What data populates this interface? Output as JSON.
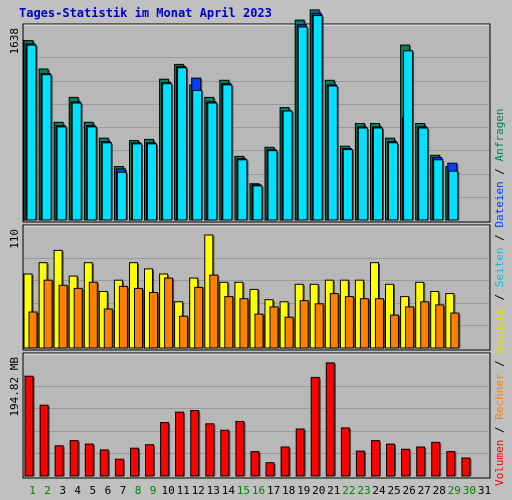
{
  "title": "Tages-Statistik im Monat April 2023",
  "colors": {
    "background": "#c0c0c0",
    "panel": "#b8b8b8",
    "title": "#0000cc",
    "grid": "#9a9a9a",
    "anfragen": "#00805c",
    "dateien": "#0040ff",
    "seiten": "#00e0ff",
    "besuche": "#ffff00",
    "rechner": "#ff8000",
    "volumen": "#ff0000",
    "weekday": "#000000",
    "weekend": "#008000"
  },
  "legend_right": [
    {
      "text": "Volumen",
      "color": "#ff0000"
    },
    {
      "text": " / ",
      "color": "#000000"
    },
    {
      "text": "Rechner",
      "color": "#ff8000"
    },
    {
      "text": " / ",
      "color": "#000000"
    },
    {
      "text": "Besuche",
      "color": "#e0e000"
    },
    {
      "text": " / ",
      "color": "#000000"
    },
    {
      "text": "Seiten",
      "color": "#00c0e0"
    },
    {
      "text": " / ",
      "color": "#000000"
    },
    {
      "text": "Dateien",
      "color": "#0040ff"
    },
    {
      "text": " / ",
      "color": "#000000"
    },
    {
      "text": "Anfragen",
      "color": "#00805c"
    }
  ],
  "chart_data": {
    "type": "bar",
    "x": [
      1,
      2,
      3,
      4,
      5,
      6,
      7,
      8,
      9,
      10,
      11,
      12,
      13,
      14,
      15,
      16,
      17,
      18,
      19,
      20,
      21,
      22,
      23,
      24,
      25,
      26,
      27,
      28,
      29,
      30,
      31
    ],
    "weekend_days": [
      1,
      2,
      8,
      9,
      15,
      16,
      22,
      23,
      29,
      30
    ],
    "panels": [
      {
        "ylabel": "1638",
        "ymax": 1638,
        "series": [
          {
            "name": "Anfragen",
            "values": [
              1580,
              1330,
              860,
              1080,
              860,
              720,
              470,
              700,
              710,
              1240,
              1370,
              1190,
              1080,
              1230,
              560,
              320,
              640,
              990,
              1760,
              1850,
              1230,
              650,
              850,
              850,
              720,
              1540,
              850,
              570,
              470,
              0,
              0
            ]
          },
          {
            "name": "Dateien",
            "values": [
              1550,
              1290,
              830,
              1040,
              830,
              690,
              450,
              680,
              680,
              1210,
              1350,
              1250,
              1040,
              1200,
              540,
              310,
              620,
              960,
              1720,
              1820,
              1190,
              630,
              820,
              820,
              690,
              900,
              820,
              550,
              500,
              0,
              0
            ]
          },
          {
            "name": "Seiten",
            "values": [
              1540,
              1280,
              820,
              1030,
              820,
              680,
              420,
              670,
              670,
              1200,
              1340,
              1140,
              1030,
              1190,
              530,
              300,
              610,
              960,
              1700,
              1800,
              1180,
              620,
              810,
              810,
              680,
              1490,
              810,
              530,
              430,
              0,
              0
            ]
          }
        ]
      },
      {
        "ylabel": "110",
        "ymax": 110,
        "series": [
          {
            "name": "Besuche",
            "values": [
              72,
              83,
              95,
              70,
              83,
              55,
              66,
              83,
              77,
              72,
              45,
              68,
              110,
              64,
              64,
              57,
              47,
              45,
              62,
              62,
              66,
              66,
              66,
              83,
              62,
              50,
              64,
              55,
              53,
              0,
              0
            ]
          },
          {
            "name": "Rechner",
            "values": [
              35,
              66,
              61,
              58,
              64,
              38,
              60,
              58,
              54,
              68,
              31,
              59,
              71,
              50,
              48,
              33,
              40,
              30,
              46,
              43,
              53,
              50,
              48,
              48,
              32,
              40,
              45,
              42,
              34,
              0,
              0
            ]
          }
        ]
      },
      {
        "ylabel": "194.82 MB",
        "ymax": 194.82,
        "series": [
          {
            "name": "Volumen",
            "values": [
              172,
              122,
              52,
              61,
              55,
              45,
              29,
              48,
              54,
              92,
              110,
              113,
              90,
              79,
              94,
              42,
              23,
              50,
              81,
              170,
              195,
              83,
              43,
              61,
              55,
              46,
              50,
              58,
              42,
              31,
              0
            ]
          }
        ]
      }
    ]
  }
}
